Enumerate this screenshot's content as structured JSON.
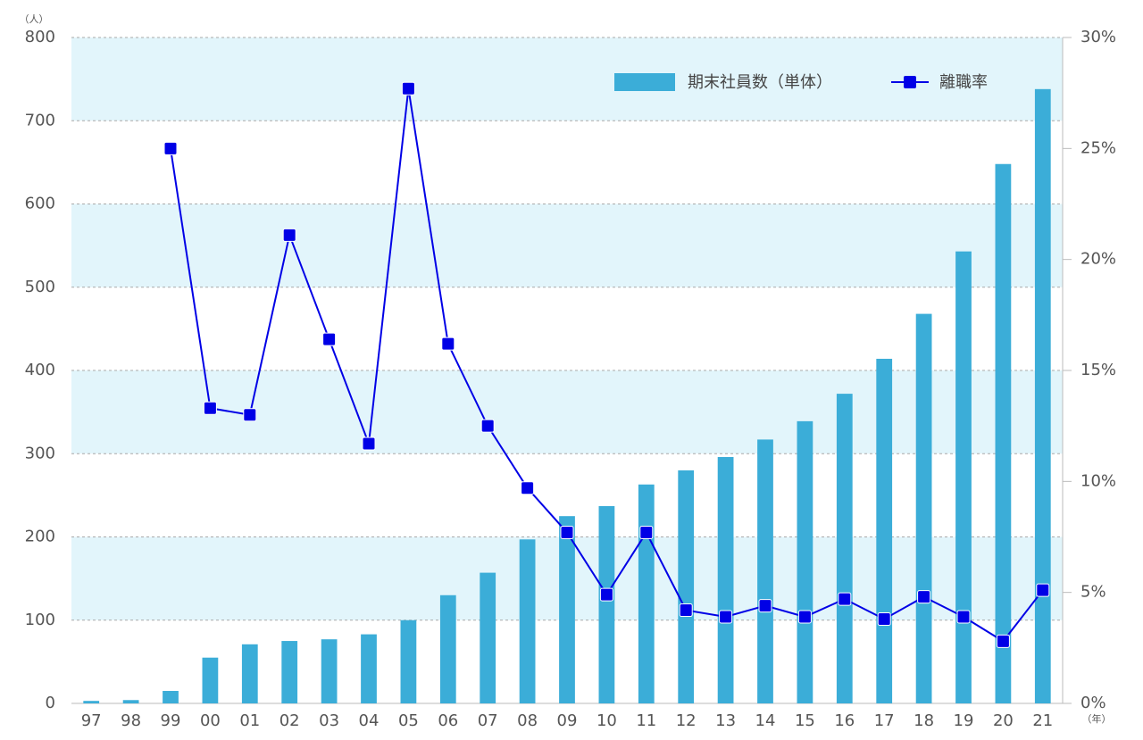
{
  "chart_data": {
    "type": "bar-line",
    "y_unit": "（人）",
    "x_unit": "（年）",
    "categories": [
      "97",
      "98",
      "99",
      "00",
      "01",
      "02",
      "03",
      "04",
      "05",
      "06",
      "07",
      "08",
      "09",
      "10",
      "11",
      "12",
      "13",
      "14",
      "15",
      "16",
      "17",
      "18",
      "19",
      "20",
      "21"
    ],
    "series": [
      {
        "name": "期末社員数（単体）",
        "type": "bar",
        "color": "#3badd8",
        "values": [
          3,
          4,
          15,
          55,
          71,
          75,
          77,
          83,
          100,
          130,
          157,
          197,
          225,
          237,
          263,
          280,
          296,
          317,
          339,
          372,
          414,
          468,
          543,
          648,
          738
        ]
      },
      {
        "name": "離職率",
        "type": "line",
        "axis": "y2",
        "color": "#0000e6",
        "values": [
          null,
          null,
          25.0,
          13.3,
          13.0,
          21.1,
          16.4,
          11.7,
          27.7,
          16.2,
          12.5,
          9.7,
          7.7,
          4.9,
          7.7,
          4.2,
          3.9,
          4.4,
          3.9,
          4.7,
          3.8,
          4.8,
          3.9,
          2.8,
          5.1
        ]
      }
    ],
    "ylim": [
      0,
      800
    ],
    "yticks": [
      0,
      100,
      200,
      300,
      400,
      500,
      600,
      700,
      800
    ],
    "y2lim": [
      0,
      30
    ],
    "y2ticks": [
      {
        "value": 0,
        "label": "0%"
      },
      {
        "value": 5,
        "label": "5%"
      },
      {
        "value": 10,
        "label": "10%"
      },
      {
        "value": 15,
        "label": "15%"
      },
      {
        "value": 20,
        "label": "20%"
      },
      {
        "value": 25,
        "label": "25%"
      },
      {
        "value": 30,
        "label": "30%"
      }
    ],
    "grid": true
  }
}
